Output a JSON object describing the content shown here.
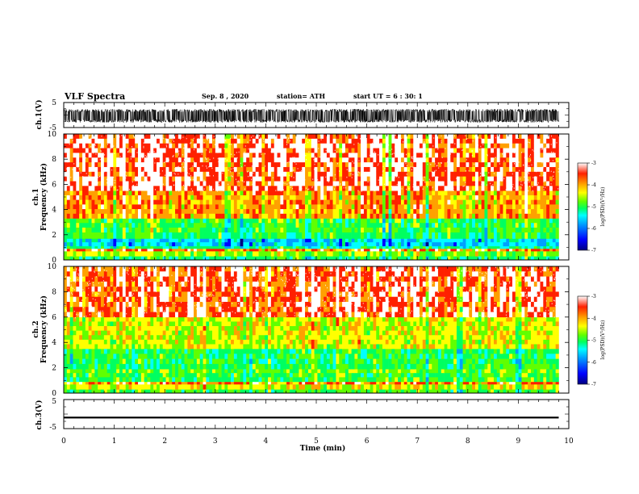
{
  "header": {
    "title": "VLF Spectra",
    "date": "Sep. 8 , 2020",
    "station": "station= ATH",
    "start": "start UT = 6 : 30: 1"
  },
  "chart_data": [
    {
      "type": "line",
      "panel": "ch1-waveform",
      "ylabel": "ch.1(V)",
      "ylim": [
        -5,
        5
      ],
      "y_ticks": [
        "5",
        "-5"
      ],
      "xlim": [
        0,
        10
      ],
      "data_extent_min": 9.8,
      "description_values": {
        "center": -0.3,
        "amplitude_range": [
          -3.0,
          2.4
        ]
      }
    },
    {
      "type": "heatmap",
      "panel": "ch1-spectrogram",
      "ylabel": "ch.1\nFrequency (kHz)",
      "ylim": [
        0,
        10
      ],
      "y_ticks": [
        "0",
        "2",
        "4",
        "6",
        "8",
        "10"
      ],
      "xlim": [
        0,
        10
      ],
      "data_extent_min": 9.8,
      "bands": [
        {
          "f_from": 0,
          "f_to": 0.3,
          "log_psd": -5.2
        },
        {
          "f_from": 0.3,
          "f_to": 0.7,
          "log_psd": -4.6
        },
        {
          "f_from": 0.7,
          "f_to": 0.9,
          "log_psd": -3.6
        },
        {
          "f_from": 0.9,
          "f_to": 1.1,
          "log_psd": -5.3
        },
        {
          "f_from": 1.1,
          "f_to": 1.7,
          "log_psd": -5.8
        },
        {
          "f_from": 1.7,
          "f_to": 2.2,
          "log_psd": -5.1
        },
        {
          "f_from": 2.2,
          "f_to": 3.3,
          "log_psd": -5.0
        },
        {
          "f_from": 3.3,
          "f_to": 5.5,
          "log_psd": -3.9
        },
        {
          "f_from": 5.5,
          "f_to": 10,
          "log_psd": -3.3
        }
      ]
    },
    {
      "type": "heatmap",
      "panel": "ch2-spectrogram",
      "ylabel": "ch.2\nFrequency (kHz)",
      "ylim": [
        0,
        10
      ],
      "y_ticks": [
        "0",
        "2",
        "4",
        "6",
        "8",
        "10"
      ],
      "xlim": [
        0,
        10
      ],
      "data_extent_min": 9.8,
      "bands": [
        {
          "f_from": 0,
          "f_to": 0.3,
          "log_psd": -5.0
        },
        {
          "f_from": 0.3,
          "f_to": 0.7,
          "log_psd": -4.4
        },
        {
          "f_from": 0.7,
          "f_to": 0.9,
          "log_psd": -3.7
        },
        {
          "f_from": 0.9,
          "f_to": 1.6,
          "log_psd": -5.0
        },
        {
          "f_from": 1.6,
          "f_to": 1.9,
          "log_psd": -4.8
        },
        {
          "f_from": 1.9,
          "f_to": 3.5,
          "log_psd": -5.1
        },
        {
          "f_from": 3.5,
          "f_to": 6.0,
          "log_psd": -4.4
        },
        {
          "f_from": 6.0,
          "f_to": 10,
          "log_psd": -3.4
        }
      ]
    },
    {
      "type": "line",
      "panel": "ch3-waveform",
      "ylabel": "ch.3(V)",
      "ylim": [
        -5,
        5
      ],
      "y_ticks": [
        "5",
        "-5"
      ],
      "xlim": [
        0,
        10
      ],
      "data_extent_min": 9.8,
      "description_values": {
        "center": -1.2,
        "amplitude_range": [
          -1.5,
          -0.9
        ]
      }
    }
  ],
  "x_axis": {
    "label": "Time (min)",
    "ticks": [
      "0",
      "1",
      "2",
      "3",
      "4",
      "5",
      "6",
      "7",
      "8",
      "9",
      "10"
    ]
  },
  "colorbar": {
    "label": "log(PSD)(V²/Hz)",
    "ticks": [
      "-3",
      "-4",
      "-5",
      "-6",
      "-7"
    ],
    "range": [
      -7,
      -3
    ],
    "colors": [
      "#00007f",
      "#0000ff",
      "#00a0ff",
      "#00ffff",
      "#00ff60",
      "#60ff00",
      "#ffff00",
      "#ffa000",
      "#ff2000",
      "#ffffff"
    ]
  }
}
